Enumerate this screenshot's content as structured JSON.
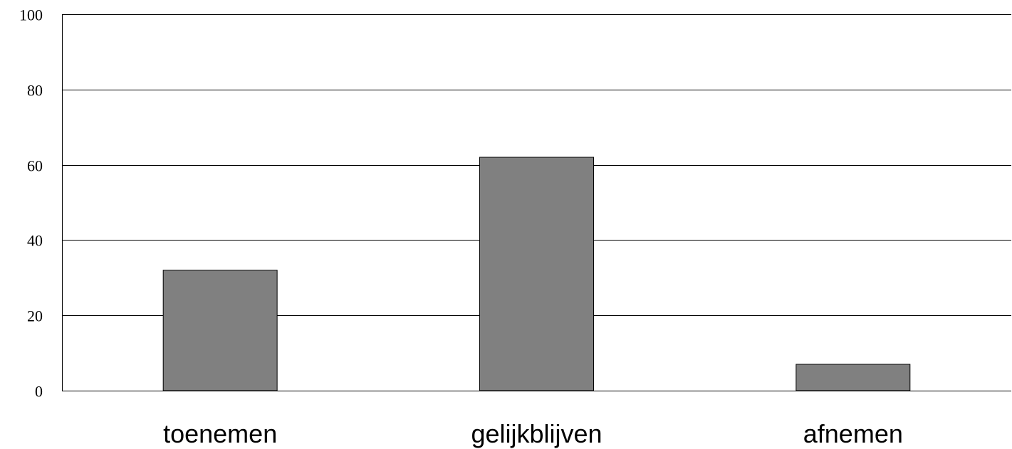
{
  "chart_data": {
    "type": "bar",
    "categories": [
      "toenemen",
      "gelijkblijven",
      "afnemen"
    ],
    "values": [
      32,
      62,
      7
    ],
    "title": "",
    "xlabel": "",
    "ylabel": "",
    "ylim": [
      0,
      100
    ],
    "yticks": [
      "0",
      "20",
      "40",
      "60",
      "80",
      "100"
    ],
    "grid": true,
    "legend": "none",
    "colors": {
      "bar_fill": "#808080",
      "bar_stroke": "#000000",
      "grid": "#000000",
      "background": "#ffffff"
    }
  }
}
